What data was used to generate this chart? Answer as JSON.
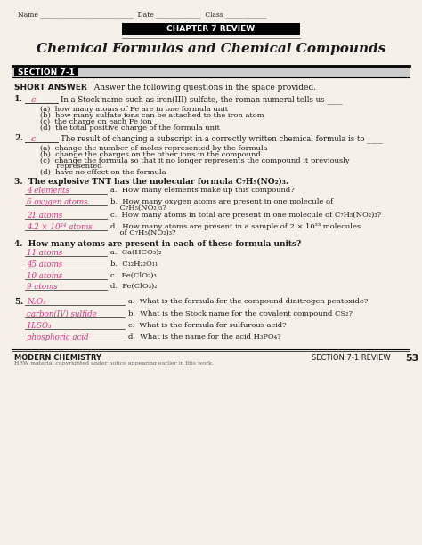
{
  "page_bg": "#f5f0e8",
  "header_line": "Name ___________________________ Date _____________ Class ____________",
  "chapter_box_text": "CHAPTER 7 REVIEW",
  "title": "Chemical Formulas and Chemical Compounds",
  "section_label": "SECTION 7-1",
  "short_answer_label": "SHORT ANSWER",
  "short_answer_text": "Answer the following questions in the space provided.",
  "q1_num": "1.",
  "q1_answer": "c",
  "q1_text": "In a Stock name such as iron(III) sulfate, the roman numeral tells us ____",
  "q1_choices": [
    "(a)  how many atoms of Fe are in one formula unit",
    "(b)  how many sulfate ions can be attached to the iron atom",
    "(c)  the charge on each Fe ion",
    "(d)  the total positive charge of the formula unit"
  ],
  "q2_num": "2.",
  "q2_answer": "c",
  "q2_text": "The result of changing a subscript in a correctly written chemical formula is to ____",
  "q2_choices": [
    "(a)  change the number of moles represented by the formula",
    "(b)  change the charges on the other ions in the compound",
    "(c)  change the formula so that it no longer represents the compound it previously\n       represented",
    "(d)  have no effect on the formula"
  ],
  "q3_intro": "3.  The explosive TNT has the molecular formula C₇H₅(NO₂)₃.",
  "q3_answers": [
    "4 elements",
    "6 oxygen atoms",
    "21 atoms",
    "4.2 × 10²⁴ atoms"
  ],
  "q3_parts": [
    "a.  How many elements make up this compound?",
    "b.  How many oxygen atoms are present in one molecule of\n     C₇H₅(NO₂)₃?",
    "c.  How many atoms in total are present in one molecule of C₇H₅(NO₂)₃?",
    "d.  How many atoms are present in a sample of 2 × 10²³ molecules\n     of C₇H₅(NO₂)₃?"
  ],
  "q4_intro": "4.  How many atoms are present in each of these formula units?",
  "q4_answers": [
    "11 atoms",
    "45 atoms",
    "10 atoms",
    "9 atoms"
  ],
  "q4_parts": [
    "a.  Ca(HCO₃)₂",
    "b.  C₁₂H₂₂O₁₁",
    "c.  Fe(ClO₂)₃",
    "d.  Fe(ClO₃)₂"
  ],
  "q5_num": "5.",
  "q5_answers": [
    "N₂O₅",
    "carbon(IV) sulfide",
    "H₂SO₃",
    "phosphoric acid"
  ],
  "q5_parts": [
    "a.  What is the formula for the compound dinitrogen pentoxide?",
    "b.  What is the Stock name for the covalent compound CS₂?",
    "c.  What is the formula for sulfurous acid?",
    "d.  What is the name for the acid H₃PO₄?"
  ],
  "footer_left": "MODERN CHEMISTRY",
  "footer_right": "SECTION 7-1 REVIEW",
  "footer_page": "53",
  "footer_copy": "HRW material copyrighted under notice appearing earlier in this work.",
  "answer_color": "#d63384",
  "text_color": "#1a1a1a",
  "bg_color": "#f5f0e8"
}
